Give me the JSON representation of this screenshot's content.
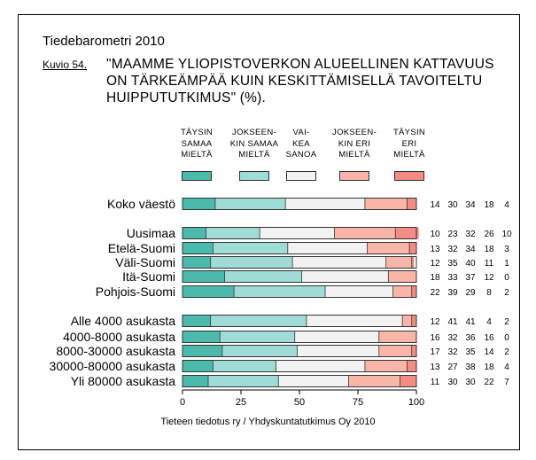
{
  "header": {
    "source_title": "Tiedebarometri 2010",
    "figure_label": "Kuvio 54.",
    "figure_title": "\"MAAMME YLIOPISTOVERKON ALUEELLINEN KATTAVUUS ON TÄRKEÄMPÄÄ KUIN KESKITTÄMISELLÄ TAVOITELTU HUIPPUTUTKIMUS\" (%)."
  },
  "footer": {
    "credit": "Tieteen tiedotus ry / Yhdyskuntatutkimus Oy 2010"
  },
  "legend": [
    {
      "lines": [
        "TÄYSIN",
        "SAMAA",
        "MIELTÄ"
      ],
      "color": "#4cb9ad"
    },
    {
      "lines": [
        "JOKSEEN-",
        "KIN SAMAA",
        "MIELTÄ"
      ],
      "color": "#9fdcd6"
    },
    {
      "lines": [
        "VAI-",
        "KEA",
        "SANOA"
      ],
      "color": "#f2f2f2"
    },
    {
      "lines": [
        "JOKSEEN-",
        "KIN ERI",
        "MIELTÄ"
      ],
      "color": "#f9b5a8"
    },
    {
      "lines": [
        "TÄYSIN",
        "ERI",
        "MIELTÄ"
      ],
      "color": "#f38c82"
    }
  ],
  "chart_data": {
    "type": "bar",
    "orientation": "horizontal",
    "stacked": true,
    "title": "\"MAAMME YLIOPISTOVERKON ALUEELLINEN KATTAVUUS ON TÄRKEÄMPÄÄ KUIN KESKITTÄMISELLÄ TAVOITELTU HUIPPUTUTKIMUS\" (%).",
    "xlim": [
      0,
      100
    ],
    "xticks": [
      0,
      25,
      50,
      75,
      100
    ],
    "series_names": [
      "TÄYSIN SAMAA MIELTÄ",
      "JOKSEENKIN SAMAA MIELTÄ",
      "VAIKEA SANOA",
      "JOKSEENKIN ERI MIELTÄ",
      "TÄYSIN ERI MIELTÄ"
    ],
    "groups": [
      {
        "rows": [
          {
            "label": "Koko väestö",
            "values": [
              14,
              30,
              34,
              18,
              4
            ]
          }
        ]
      },
      {
        "rows": [
          {
            "label": "Uusimaa",
            "values": [
              10,
              23,
              32,
              26,
              10
            ]
          },
          {
            "label": "Etelä-Suomi",
            "values": [
              13,
              32,
              34,
              18,
              3
            ]
          },
          {
            "label": "Väli-Suomi",
            "values": [
              12,
              35,
              40,
              11,
              1
            ]
          },
          {
            "label": "Itä-Suomi",
            "values": [
              18,
              33,
              37,
              12,
              0
            ]
          },
          {
            "label": "Pohjois-Suomi",
            "values": [
              22,
              39,
              29,
              8,
              2
            ]
          }
        ]
      },
      {
        "rows": [
          {
            "label": "Alle 4000 asukasta",
            "values": [
              12,
              41,
              41,
              4,
              2
            ]
          },
          {
            "label": "4000-8000 asukasta",
            "values": [
              16,
              32,
              36,
              16,
              0
            ]
          },
          {
            "label": "8000-30000 asukasta",
            "values": [
              17,
              32,
              35,
              14,
              2
            ]
          },
          {
            "label": "30000-80000 asukasta",
            "values": [
              13,
              27,
              38,
              18,
              4
            ]
          },
          {
            "label": "Yli 80000 asukasta",
            "values": [
              11,
              30,
              30,
              22,
              7
            ]
          }
        ]
      }
    ]
  }
}
